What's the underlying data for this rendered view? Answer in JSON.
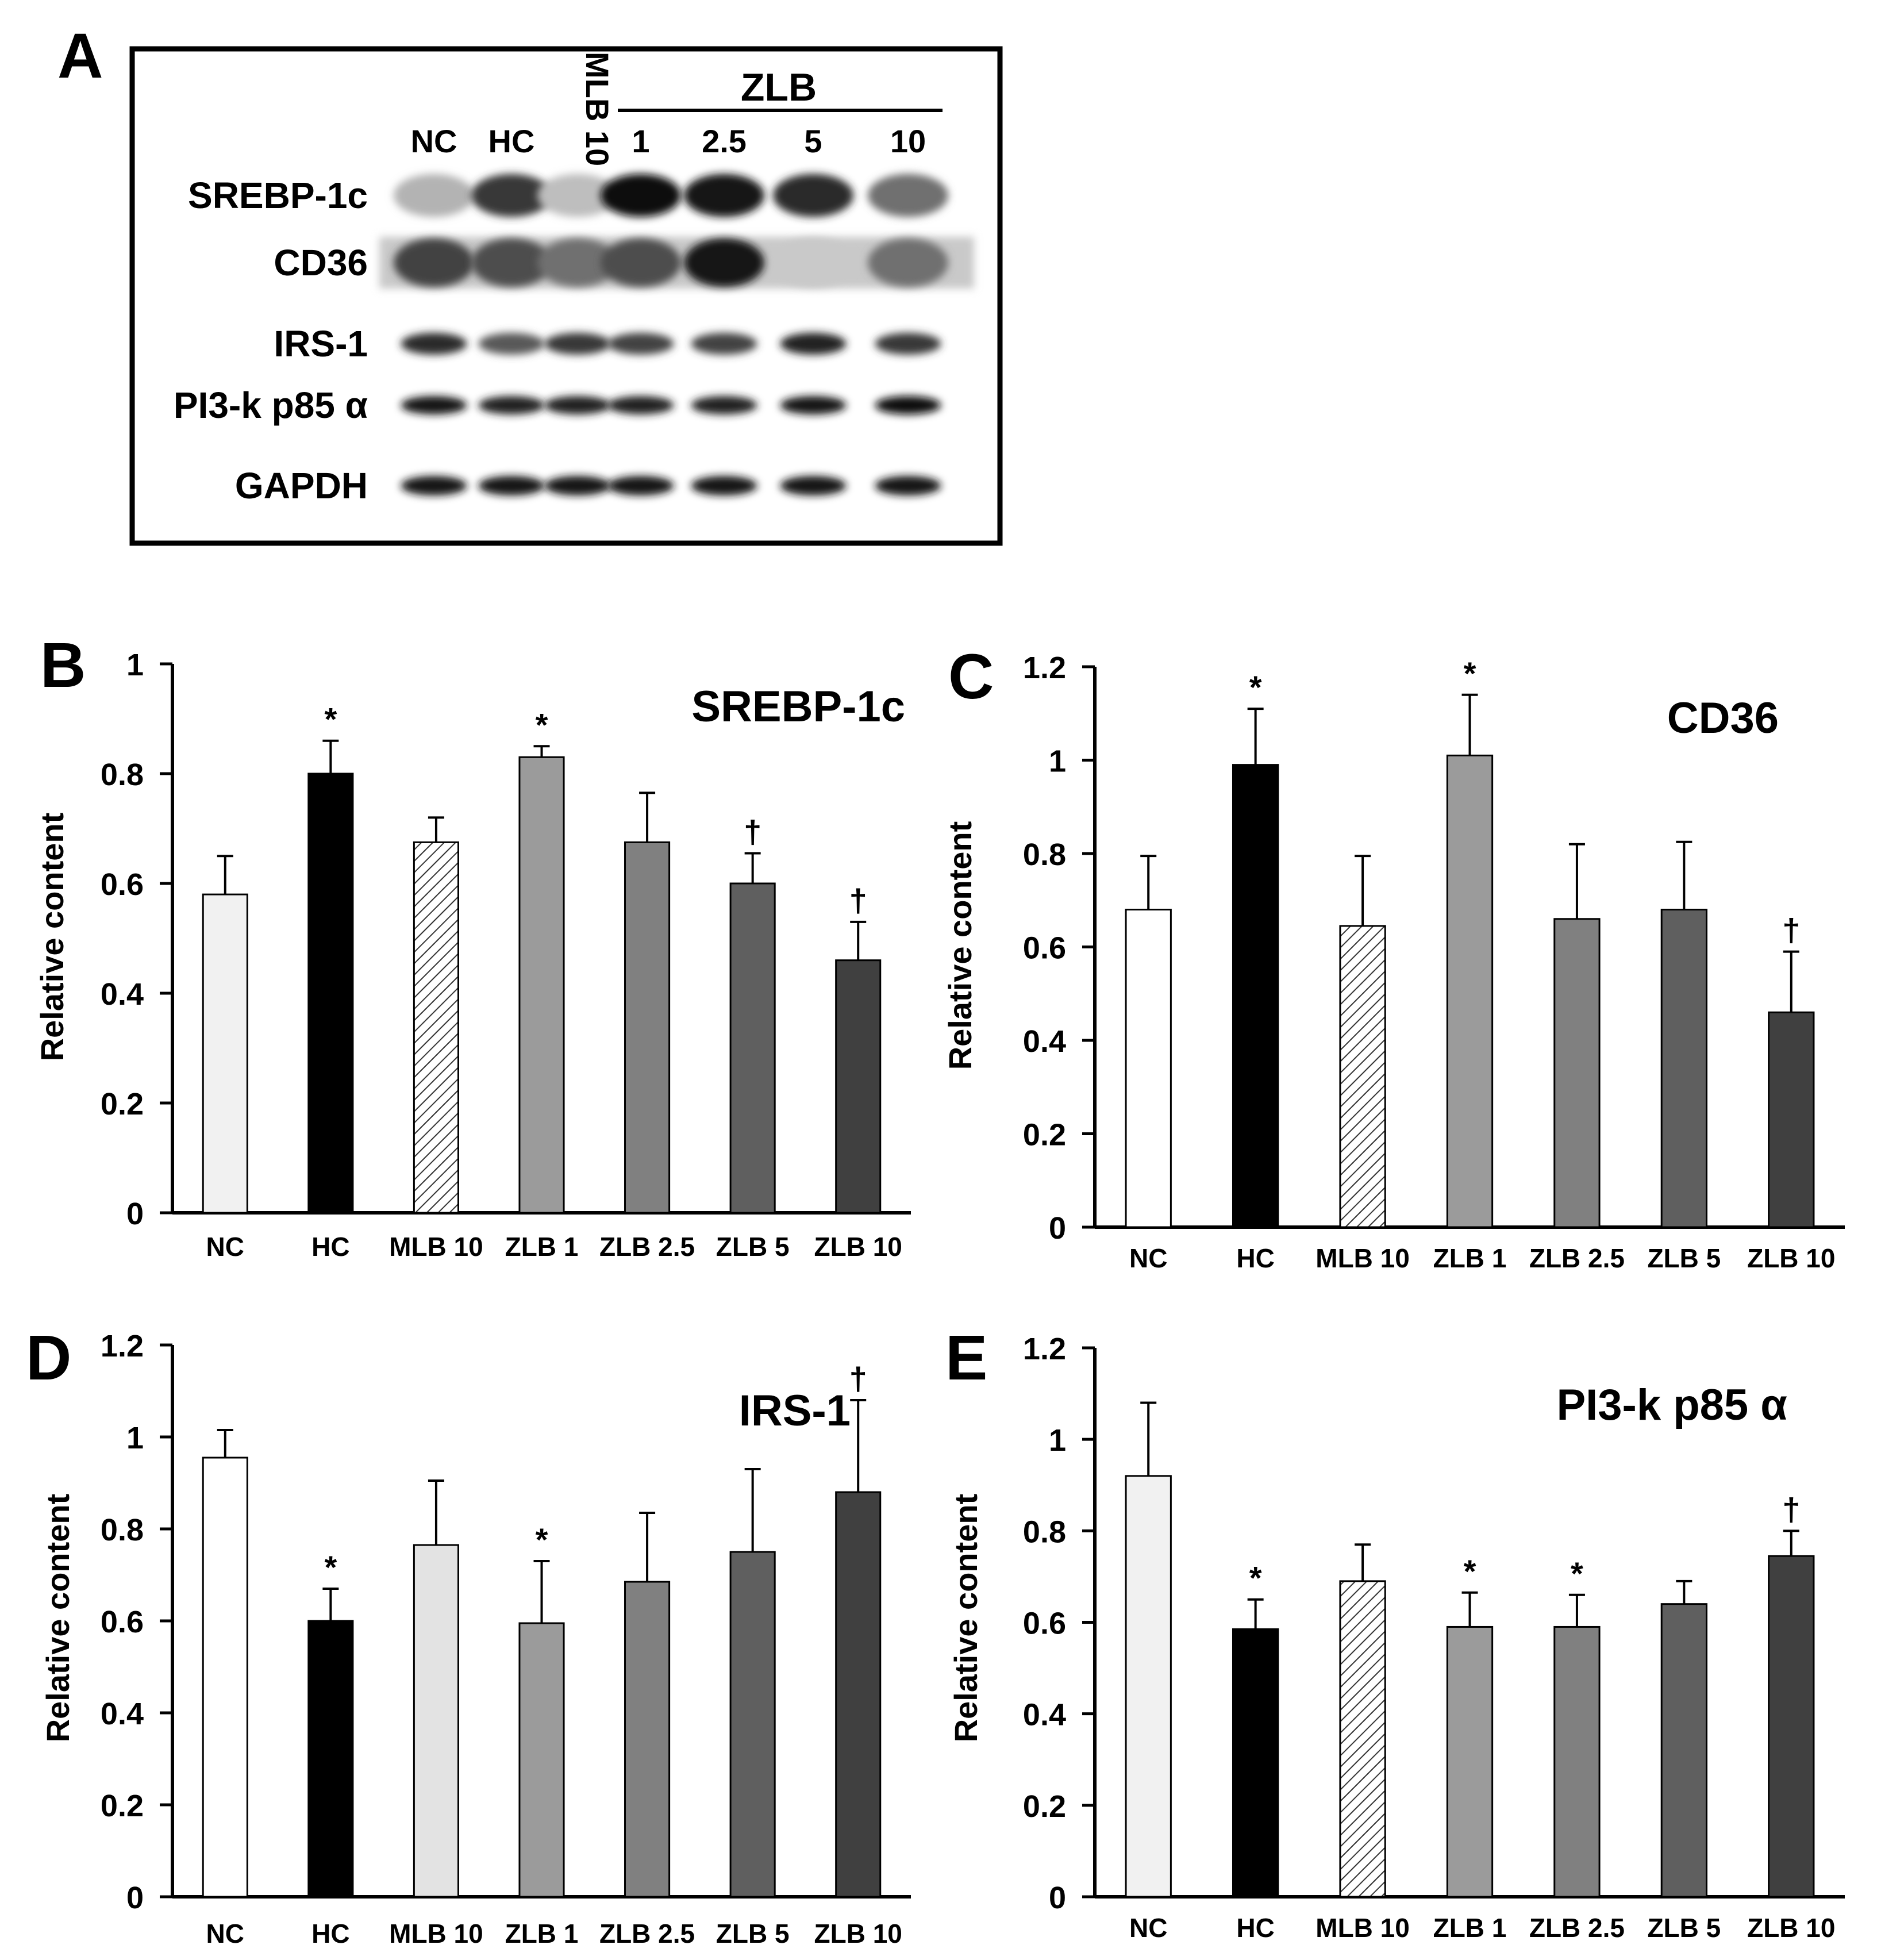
{
  "figure": {
    "panel_letters": [
      "A",
      "B",
      "C",
      "D",
      "E"
    ]
  },
  "western_blot": {
    "lane_labels": [
      "NC",
      "HC",
      "MLB 10",
      "1",
      "2.5",
      "5",
      "10"
    ],
    "group_label": "ZLB",
    "protein_labels": [
      "SREBP-1c",
      "CD36",
      "IRS-1",
      "PI3-k p85 α",
      "GAPDH"
    ],
    "band_intensity": [
      [
        0.25,
        0.8,
        0.2,
        1.0,
        0.95,
        0.85,
        0.55
      ],
      [
        0.75,
        0.7,
        0.55,
        0.7,
        0.95,
        0.15,
        0.55
      ],
      [
        0.85,
        0.65,
        0.8,
        0.75,
        0.75,
        0.9,
        0.8
      ],
      [
        0.95,
        0.9,
        0.9,
        0.9,
        0.9,
        0.95,
        1.0
      ],
      [
        0.95,
        0.95,
        0.95,
        0.95,
        0.95,
        0.95,
        0.95
      ]
    ]
  },
  "chart_data": [
    {
      "type": "bar",
      "panel": "B",
      "title": "SREBP-1c",
      "ylabel": "Relative content",
      "xlabel": "",
      "ylim": [
        0,
        1
      ],
      "yticks": [
        "0",
        "0.2",
        "0.4",
        "0.6",
        "0.8",
        "1"
      ],
      "categories": [
        "NC",
        "HC",
        "MLB 10",
        "ZLB 1",
        "ZLB 2.5",
        "ZLB 5",
        "ZLB 10"
      ],
      "values": [
        0.58,
        0.8,
        0.675,
        0.83,
        0.675,
        0.6,
        0.46
      ],
      "errors": [
        0.07,
        0.06,
        0.045,
        0.02,
        0.09,
        0.055,
        0.07
      ],
      "annotations": [
        "",
        "*",
        "",
        "*",
        "",
        "†",
        "†"
      ],
      "fills": [
        "#f1f1f1",
        "#000000",
        "hatch",
        "#9b9b9b",
        "#808080",
        "#5f5f5f",
        "#404040"
      ]
    },
    {
      "type": "bar",
      "panel": "C",
      "title": "CD36",
      "ylabel": "Relative content",
      "xlabel": "",
      "ylim": [
        0,
        1.2
      ],
      "yticks": [
        "0",
        "0.2",
        "0.4",
        "0.6",
        "0.8",
        "1",
        "1.2"
      ],
      "categories": [
        "NC",
        "HC",
        "MLB 10",
        "ZLB 1",
        "ZLB 2.5",
        "ZLB 5",
        "ZLB 10"
      ],
      "values": [
        0.68,
        0.99,
        0.645,
        1.01,
        0.66,
        0.68,
        0.46
      ],
      "errors": [
        0.115,
        0.12,
        0.15,
        0.13,
        0.16,
        0.145,
        0.13
      ],
      "annotations": [
        "",
        "*",
        "",
        "*",
        "",
        "",
        "†"
      ],
      "fills": [
        "#ffffff",
        "#000000",
        "hatch",
        "#9b9b9b",
        "#808080",
        "#5f5f5f",
        "#404040"
      ]
    },
    {
      "type": "bar",
      "panel": "D",
      "title": "IRS-1",
      "ylabel": "Relative content",
      "xlabel": "",
      "ylim": [
        0,
        1.2
      ],
      "yticks": [
        "0",
        "0.2",
        "0.4",
        "0.6",
        "0.8",
        "1",
        "1.2"
      ],
      "categories": [
        "NC",
        "HC",
        "MLB 10",
        "ZLB 1",
        "ZLB 2.5",
        "ZLB 5",
        "ZLB 10"
      ],
      "values": [
        0.955,
        0.6,
        0.765,
        0.595,
        0.685,
        0.75,
        0.88
      ],
      "errors": [
        0.06,
        0.07,
        0.14,
        0.135,
        0.15,
        0.18,
        0.2
      ],
      "annotations": [
        "",
        "*",
        "",
        "*",
        "",
        "",
        "†"
      ],
      "fills": [
        "#ffffff",
        "#000000",
        "#e3e3e3",
        "#9b9b9b",
        "#808080",
        "#5f5f5f",
        "#404040"
      ]
    },
    {
      "type": "bar",
      "panel": "E",
      "title": "PI3-k p85 α",
      "ylabel": "Relative content",
      "xlabel": "",
      "ylim": [
        0,
        1.2
      ],
      "yticks": [
        "0",
        "0.2",
        "0.4",
        "0.6",
        "0.8",
        "1",
        "1.2"
      ],
      "categories": [
        "NC",
        "HC",
        "MLB 10",
        "ZLB 1",
        "ZLB 2.5",
        "ZLB 5",
        "ZLB 10"
      ],
      "values": [
        0.92,
        0.585,
        0.69,
        0.59,
        0.59,
        0.64,
        0.745
      ],
      "errors": [
        0.16,
        0.065,
        0.08,
        0.075,
        0.07,
        0.05,
        0.055
      ],
      "annotations": [
        "",
        "*",
        "",
        "*",
        "*",
        "",
        "†"
      ],
      "fills": [
        "#f1f1f1",
        "#000000",
        "hatch",
        "#9b9b9b",
        "#808080",
        "#5f5f5f",
        "#404040"
      ]
    }
  ]
}
